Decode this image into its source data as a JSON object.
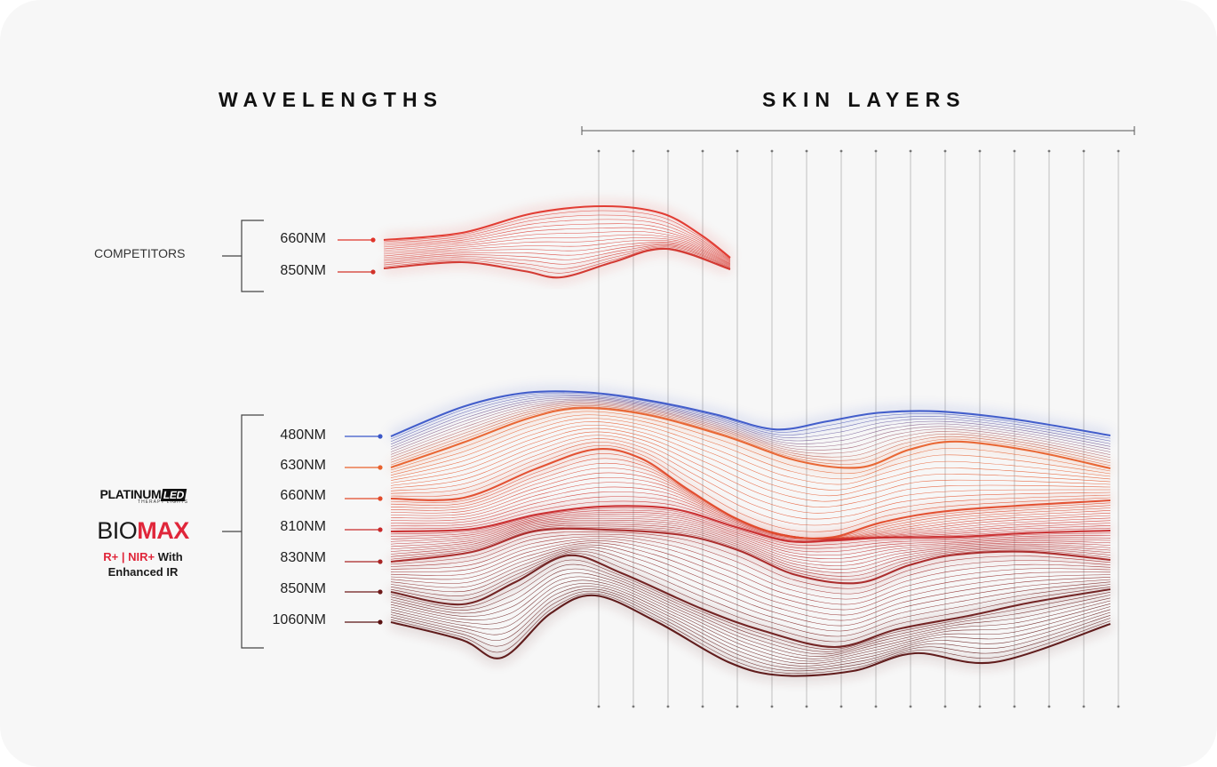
{
  "headings": {
    "wavelengths": "WAVELENGTHS",
    "skin_layers": "SKIN LAYERS"
  },
  "competitors": {
    "label": "COMPETITORS",
    "wavelengths": [
      {
        "label": "660NM",
        "color": "#e0342a"
      },
      {
        "label": "850NM",
        "color": "#d1322a"
      }
    ]
  },
  "brand": {
    "platinum": "PLATINUM",
    "led": "LED",
    "therapy": "THERAPY LIGHTS",
    "bio": "BIO",
    "max": "MAX",
    "tag_red": "R+ | NIR+",
    "tag_rest": " With",
    "tag_line2": "Enhanced IR",
    "accent_color": "#e0263a"
  },
  "biomax": {
    "wavelengths": [
      {
        "label": "480NM",
        "color": "#3a56c8"
      },
      {
        "label": "630NM",
        "color": "#e8612c"
      },
      {
        "label": "660NM",
        "color": "#e24a2a"
      },
      {
        "label": "810NM",
        "color": "#c8282a"
      },
      {
        "label": "830NM",
        "color": "#a82424"
      },
      {
        "label": "850NM",
        "color": "#6e1a1a"
      },
      {
        "label": "1060NM",
        "color": "#5a1212"
      }
    ]
  },
  "skin_layer_count": 16
}
